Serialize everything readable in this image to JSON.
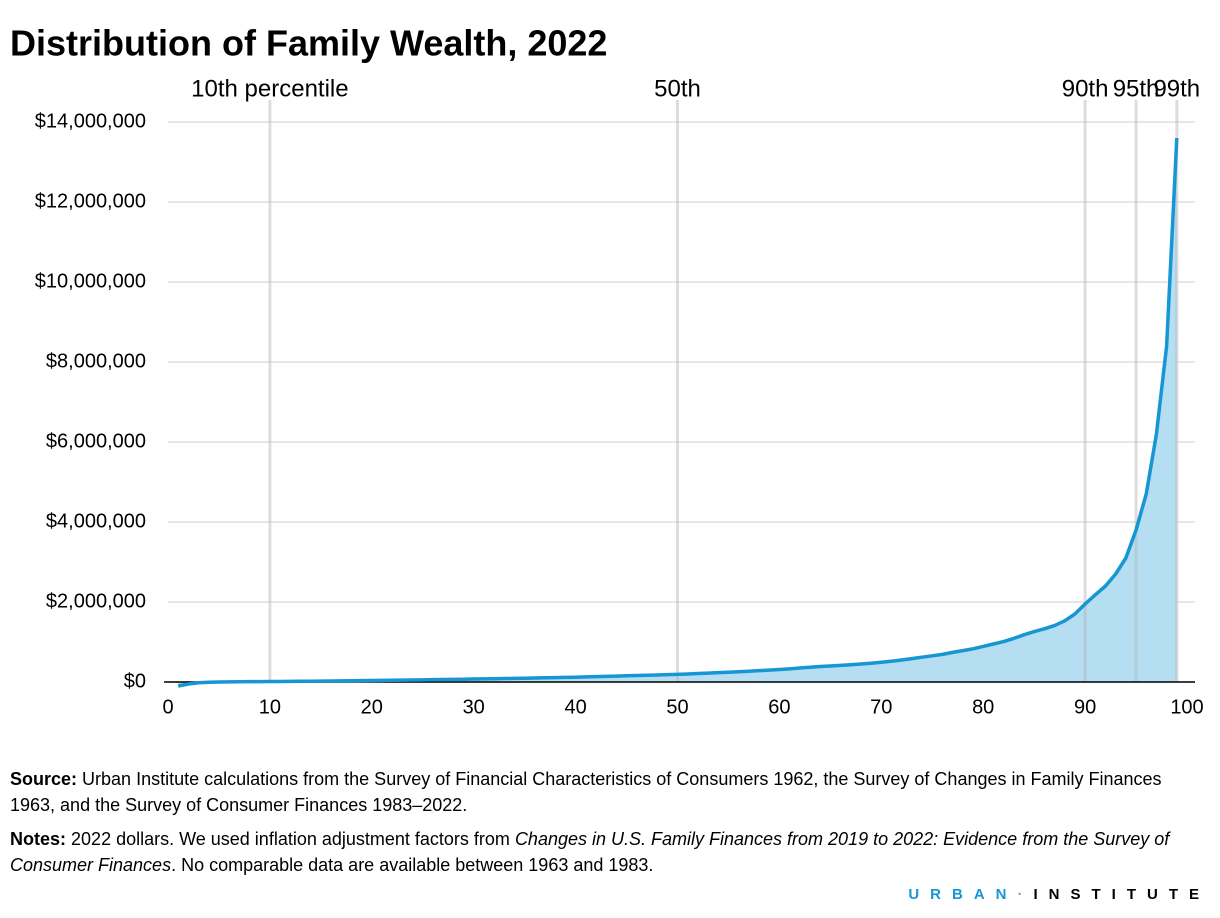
{
  "chart_data": {
    "type": "area-line",
    "title": "Distribution of Family Wealth, 2022",
    "x": [
      1,
      2,
      3,
      4,
      5,
      6,
      7,
      8,
      9,
      10,
      11,
      12,
      13,
      14,
      15,
      16,
      17,
      18,
      19,
      20,
      21,
      22,
      23,
      24,
      25,
      26,
      27,
      28,
      29,
      30,
      31,
      32,
      33,
      34,
      35,
      36,
      37,
      38,
      39,
      40,
      41,
      42,
      43,
      44,
      45,
      46,
      47,
      48,
      49,
      50,
      51,
      52,
      53,
      54,
      55,
      56,
      57,
      58,
      59,
      60,
      61,
      62,
      63,
      64,
      65,
      66,
      67,
      68,
      69,
      70,
      71,
      72,
      73,
      74,
      75,
      76,
      77,
      78,
      79,
      80,
      81,
      82,
      83,
      84,
      85,
      86,
      87,
      88,
      89,
      90,
      91,
      92,
      93,
      94,
      95,
      96,
      97,
      98,
      99
    ],
    "values": [
      -100000,
      -50000,
      -20000,
      -5000,
      0,
      2000,
      5000,
      8000,
      10000,
      12000,
      14000,
      16000,
      18000,
      20000,
      23000,
      26000,
      29000,
      32000,
      35000,
      38000,
      41000,
      44000,
      47000,
      50000,
      54000,
      58000,
      62000,
      66000,
      70000,
      74000,
      78000,
      82000,
      86000,
      90000,
      95000,
      100000,
      105000,
      110000,
      115000,
      120000,
      127000,
      134000,
      141000,
      148000,
      155000,
      162000,
      169000,
      176000,
      183000,
      190000,
      200000,
      211000,
      222000,
      233000,
      245000,
      257000,
      270000,
      283000,
      297000,
      312000,
      328000,
      350000,
      370000,
      388000,
      400000,
      415000,
      432000,
      450000,
      470000,
      495000,
      520000,
      550000,
      585000,
      620000,
      655000,
      690000,
      740000,
      785000,
      830000,
      890000,
      950000,
      1010000,
      1090000,
      1180000,
      1260000,
      1330000,
      1410000,
      1530000,
      1700000,
      1950000,
      2180000,
      2400000,
      2700000,
      3100000,
      3800000,
      4700000,
      6200000,
      8400000,
      13600000
    ],
    "color": "#1696d2",
    "fill_color": "#b5def2",
    "xlim": [
      0,
      100
    ],
    "xticks": [
      0,
      10,
      20,
      30,
      40,
      50,
      60,
      70,
      80,
      90,
      100
    ],
    "ylim": [
      0,
      14000000
    ],
    "yticks": [
      {
        "value": 0,
        "label": "$0"
      },
      {
        "value": 2000000,
        "label": "$2,000,000"
      },
      {
        "value": 4000000,
        "label": "$4,000,000"
      },
      {
        "value": 6000000,
        "label": "$6,000,000"
      },
      {
        "value": 8000000,
        "label": "$8,000,000"
      },
      {
        "value": 10000000,
        "label": "$10,000,000"
      },
      {
        "value": 12000000,
        "label": "$12,000,000"
      },
      {
        "value": 14000000,
        "label": "$14,000,000"
      }
    ],
    "grid": true,
    "annotations": [
      {
        "x": 10,
        "label": "10th percentile"
      },
      {
        "x": 50,
        "label": "50th"
      },
      {
        "x": 90,
        "label": "90th"
      },
      {
        "x": 95,
        "label": "95th"
      },
      {
        "x": 99,
        "label": "99th"
      }
    ]
  },
  "footer": {
    "source_label": "Source:",
    "source_text": "Urban Institute calculations from the Survey of Financial Characteristics of Consumers 1962, the Survey of Changes in Family Finances 1963, and the Survey of Consumer Finances 1983–2022.",
    "notes_label": "Notes:",
    "notes_text_1": "2022 dollars. We used inflation adjustment factors from",
    "notes_italic": "Changes in U.S. Family Finances from 2019 to 2022: Evidence from the Survey of Consumer Finances",
    "notes_text_2": ". No comparable data are available between 1963 and 1983.",
    "logo_1": "URBAN",
    "logo_sep": "·",
    "logo_2": "INSTITUTE"
  }
}
